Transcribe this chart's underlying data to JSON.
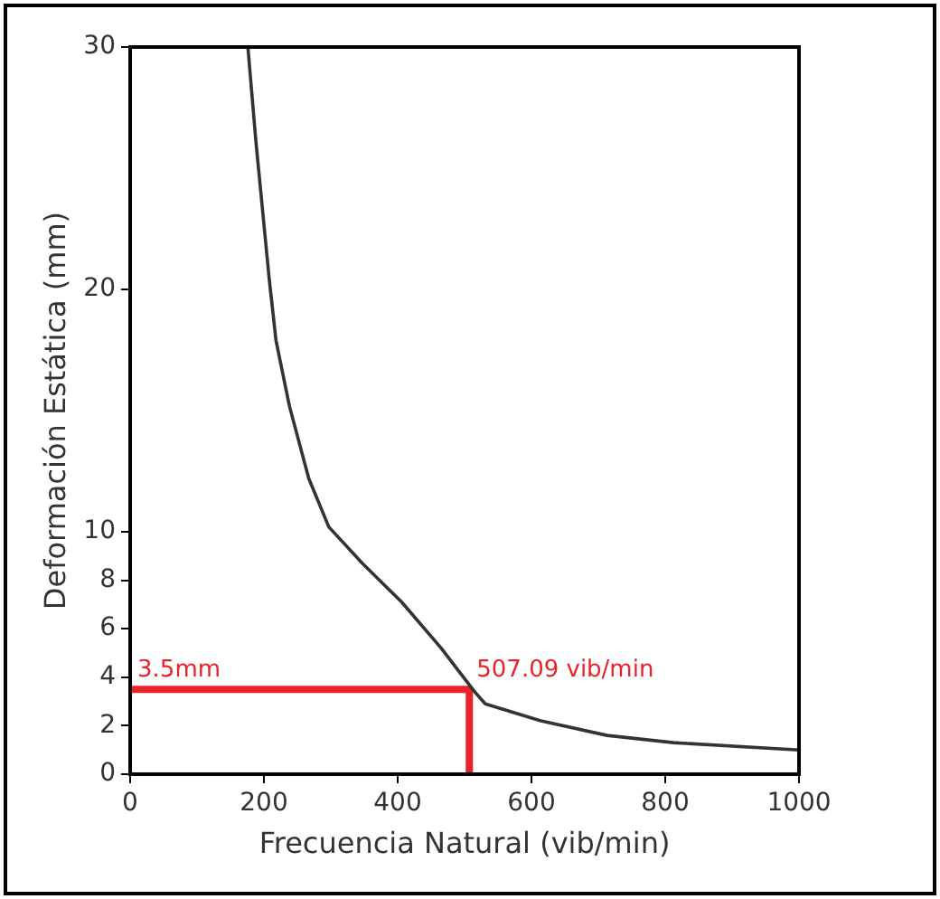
{
  "chart_data": {
    "type": "line",
    "xlabel": "Frecuencia Natural (vib/min)",
    "ylabel": "Deformación Estática (mm)",
    "xlim": [
      0,
      1000
    ],
    "xticks": [
      0,
      200,
      400,
      600,
      800,
      1000
    ],
    "ylim": [
      0,
      30
    ],
    "yticks": [
      0,
      2,
      4,
      6,
      8,
      10,
      20,
      30
    ],
    "grid": false,
    "legend": false,
    "marker": "none",
    "line_style": "solid",
    "series": [
      {
        "color": "#333333",
        "x": [
          176,
          188,
          208,
          218,
          238,
          267,
          297,
          347,
          406,
          465,
          515,
          531,
          614,
          713,
          812,
          1000
        ],
        "values": [
          30,
          26.1,
          20.4,
          17.9,
          15.2,
          12.2,
          10.2,
          8.7,
          7.1,
          5.2,
          3.4,
          2.9,
          2.2,
          1.6,
          1.3,
          1.0
        ]
      },
      {
        "color": "#e8232a",
        "x": [
          0,
          507.09,
          507.09
        ],
        "values": [
          3.5,
          3.5,
          0
        ]
      }
    ],
    "annotations": [
      {
        "text": "3.5mm",
        "x": 0,
        "y": 3.5
      },
      {
        "text": "507.09 vib/min",
        "x": 507.09,
        "y": 3.5
      }
    ]
  }
}
